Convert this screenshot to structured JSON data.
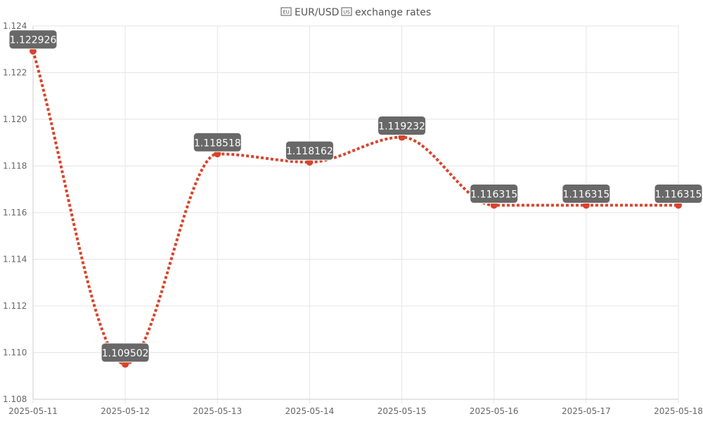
{
  "colors": {
    "line": "#d9442b",
    "point": "#d9442b",
    "label_bg": "#686868",
    "label_text": "#ffffff",
    "grid": "#e5e5e5",
    "axis": "#cccccc",
    "text": "#666666"
  },
  "title": {
    "flag_left": "EU",
    "pair": "EUR/USD",
    "flag_right": "US",
    "suffix": "exchange rates",
    "flag_left_icon": "eu-flag-icon",
    "flag_right_icon": "us-flag-icon"
  },
  "chart_data": {
    "type": "line",
    "title": "EUR/USD exchange rates",
    "x": [
      "2025-05-11",
      "2025-05-12",
      "2025-05-13",
      "2025-05-14",
      "2025-05-15",
      "2025-05-16",
      "2025-05-17",
      "2025-05-18"
    ],
    "series": [
      {
        "values": [
          1.122926,
          1.109502,
          1.118518,
          1.118162,
          1.119232,
          1.116315,
          1.116315,
          1.116315
        ],
        "labels": [
          "1.122926",
          "1.109502",
          "1.118518",
          "1.118162",
          "1.119232",
          "1.116315",
          "1.116315",
          "1.116315"
        ]
      }
    ],
    "ylim": [
      1.108,
      1.124
    ],
    "y_ticks": [
      "1.108",
      "1.110",
      "1.112",
      "1.114",
      "1.116",
      "1.118",
      "1.120",
      "1.122",
      "1.124"
    ],
    "grid": true,
    "line_style": "dotted",
    "curve": "smooth",
    "legend": "none"
  }
}
